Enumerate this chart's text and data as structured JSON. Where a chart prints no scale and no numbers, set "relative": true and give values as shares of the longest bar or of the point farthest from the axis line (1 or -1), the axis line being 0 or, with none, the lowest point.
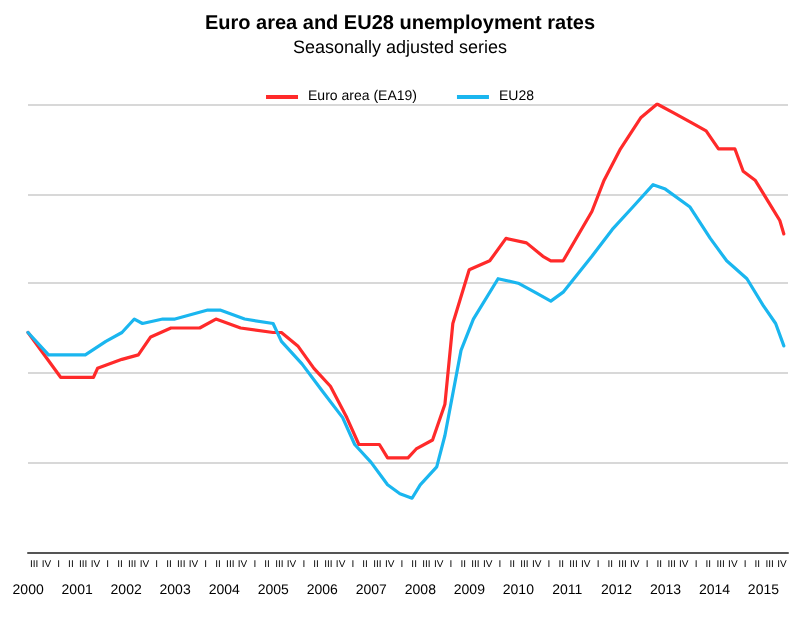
{
  "chart_data": {
    "type": "line",
    "title": "Euro area and EU28 unemployment rates",
    "subtitle": "Seasonally adjusted series",
    "relative": true,
    "grid": "y",
    "legend": "top",
    "marker": "none",
    "line_style": "solid",
    "xlim": [
      "2000-07",
      "2016-01"
    ],
    "xticks": [
      {
        "value": "2000-07-02",
        "label": "2000"
      },
      {
        "value": "2001-07-02",
        "label": "2001"
      },
      {
        "value": "2002-07-02",
        "label": "2002"
      },
      {
        "value": "2003-07-02",
        "label": "2003"
      },
      {
        "value": "2004-07-02",
        "label": "2004"
      },
      {
        "value": "2005-07-02",
        "label": "2005"
      },
      {
        "value": "2006-07-02",
        "label": "2006"
      },
      {
        "value": "2007-07-02",
        "label": "2007"
      },
      {
        "value": "2008-07-02",
        "label": "2008"
      },
      {
        "value": "2009-07-02",
        "label": "2009"
      },
      {
        "value": "2010-07-02",
        "label": "2010"
      },
      {
        "value": "2011-07-02",
        "label": "2011"
      },
      {
        "value": "2012-07-02",
        "label": "2012"
      },
      {
        "value": "2013-07-02",
        "label": "2013"
      },
      {
        "value": "2014-07-02",
        "label": "2014"
      },
      {
        "value": "2015-07-02",
        "label": "2015"
      }
    ],
    "annotations": [
      "III",
      "IV",
      "I",
      "II",
      "III",
      "IV",
      "I",
      "II",
      "III",
      "IV",
      "I",
      "II",
      "III",
      "IV",
      "I",
      "II",
      "III",
      "IV",
      "I",
      "II",
      "III",
      "IV",
      "I",
      "II",
      "III",
      "IV",
      "I",
      "II",
      "III",
      "IV",
      "I",
      "II",
      "III",
      "IV",
      "I",
      "II",
      "III",
      "IV",
      "I",
      "II",
      "III",
      "IV",
      "I",
      "II",
      "III",
      "IV",
      "I",
      "II",
      "III",
      "IV",
      "I",
      "II",
      "III",
      "IV",
      "I",
      "II",
      "III",
      "IV",
      "I",
      "II",
      "III",
      "IV"
    ],
    "series": [
      {
        "name": "Euro area (EA19)",
        "color": "#ff2a2a",
        "x": [
          "2000-07",
          "2001-03",
          "2001-11",
          "2001-12",
          "2002-06",
          "2002-10",
          "2003-01",
          "2003-06",
          "2004-01",
          "2004-05",
          "2004-11",
          "2005-07",
          "2005-09",
          "2006-01",
          "2006-05",
          "2006-09",
          "2007-01",
          "2007-04",
          "2007-09",
          "2007-11",
          "2008-04",
          "2008-06",
          "2008-10",
          "2009-01",
          "2009-03",
          "2009-07",
          "2009-12",
          "2010-04",
          "2010-09",
          "2011-01",
          "2011-03",
          "2011-06",
          "2012-01",
          "2012-04",
          "2012-08",
          "2013-01",
          "2013-05",
          "2013-09",
          "2014-01",
          "2014-05",
          "2014-08",
          "2014-12",
          "2015-02",
          "2015-05",
          "2015-09",
          "2015-11",
          "2015-12"
        ],
        "values": [
          0.49,
          0.39,
          0.39,
          0.41,
          0.43,
          0.44,
          0.48,
          0.5,
          0.5,
          0.52,
          0.5,
          0.49,
          0.49,
          0.46,
          0.41,
          0.37,
          0.3,
          0.24,
          0.24,
          0.21,
          0.21,
          0.23,
          0.25,
          0.33,
          0.51,
          0.63,
          0.65,
          0.7,
          0.69,
          0.66,
          0.65,
          0.65,
          0.76,
          0.83,
          0.9,
          0.97,
          1,
          0.98,
          0.96,
          0.94,
          0.9,
          0.9,
          0.85,
          0.83,
          0.77,
          0.74,
          0.71
        ]
      },
      {
        "name": "EU28",
        "color": "#1ab6ef",
        "x": [
          "2000-07",
          "2000-12",
          "2001-09",
          "2002-02",
          "2002-06",
          "2002-09",
          "2002-11",
          "2003-04",
          "2003-07",
          "2004-03",
          "2004-06",
          "2004-12",
          "2005-07",
          "2005-09",
          "2006-02",
          "2006-07",
          "2006-12",
          "2007-03",
          "2007-07",
          "2007-11",
          "2008-02",
          "2008-05",
          "2008-07",
          "2008-11",
          "2009-01",
          "2009-05",
          "2009-08",
          "2010-02",
          "2010-07",
          "2010-11",
          "2011-03",
          "2011-06",
          "2012-01",
          "2012-06",
          "2012-11",
          "2013-04",
          "2013-07",
          "2014-01",
          "2014-06",
          "2014-10",
          "2015-03",
          "2015-07",
          "2015-10",
          "2015-12"
        ],
        "values": [
          0.49,
          0.44,
          0.44,
          0.47,
          0.49,
          0.52,
          0.51,
          0.52,
          0.52,
          0.54,
          0.54,
          0.52,
          0.51,
          0.47,
          0.42,
          0.36,
          0.3,
          0.24,
          0.2,
          0.15,
          0.13,
          0.12,
          0.15,
          0.19,
          0.26,
          0.45,
          0.52,
          0.61,
          0.6,
          0.58,
          0.56,
          0.58,
          0.66,
          0.72,
          0.77,
          0.82,
          0.81,
          0.77,
          0.7,
          0.65,
          0.61,
          0.55,
          0.51,
          0.46
        ]
      }
    ]
  }
}
